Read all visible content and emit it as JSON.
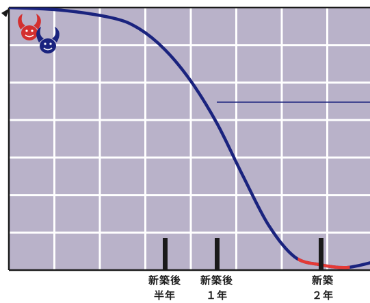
{
  "chart_data": {
    "type": "line",
    "title": "",
    "xlabel": "",
    "ylabel": "",
    "xlim": [
      -1,
      2.5
    ],
    "ylim": [
      0,
      1
    ],
    "grid": true,
    "x_tick_labels": [
      {
        "x": 0.5,
        "line1": "新築後",
        "line2": "半年"
      },
      {
        "x": 1,
        "line1": "新築後",
        "line2": "１年"
      },
      {
        "x": 2,
        "line1": "新築",
        "line2": "２年"
      }
    ],
    "series": [
      {
        "name": "",
        "color": "#1a237e",
        "x": [
          -1,
          -0.5,
          0,
          0.25,
          0.5,
          0.75,
          1,
          1.25,
          1.5,
          1.75,
          2,
          2.25,
          2.5
        ],
        "y": [
          1.0,
          0.99,
          0.96,
          0.92,
          0.84,
          0.72,
          0.56,
          0.36,
          0.17,
          0.05,
          0.02,
          0.01,
          0.03
        ]
      }
    ],
    "highlight_segment": {
      "x_from": 1.78,
      "x_to": 2.5,
      "color": "#e53935"
    },
    "reference_line": {
      "y": 0.57,
      "x_from": 1,
      "x_to": 2.5,
      "color": "#1a237e"
    },
    "mascots": [
      {
        "name": "red-mascot-icon",
        "color": "#d32f2f"
      },
      {
        "name": "blue-mascot-icon",
        "color": "#1a237e"
      }
    ],
    "colors": {
      "background": "#b9b2c9",
      "grid": "#ffffff",
      "axis": "#1a1a1a",
      "tick_mark": "#1a1a1a"
    }
  }
}
